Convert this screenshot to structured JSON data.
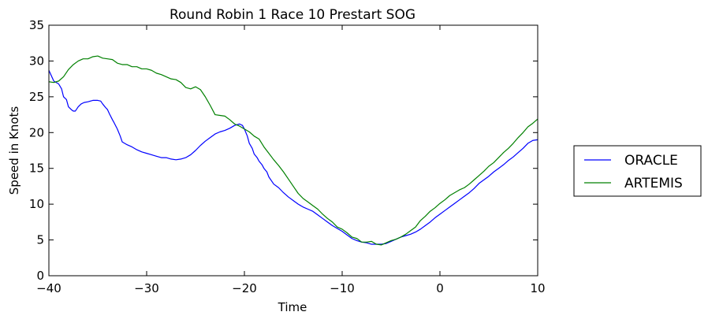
{
  "chart_data": {
    "type": "line",
    "title": "Round Robin 1 Race 10 Prestart SOG",
    "xlabel": "Time",
    "ylabel": "Speed in Knots",
    "xlim": [
      -40,
      10
    ],
    "ylim": [
      0,
      35
    ],
    "xticks": [
      -40,
      -30,
      -20,
      -10,
      0,
      10
    ],
    "xtick_labels": [
      "−40",
      "−30",
      "−20",
      "−10",
      "0",
      "10"
    ],
    "yticks": [
      0,
      5,
      10,
      15,
      20,
      25,
      30,
      35
    ],
    "ytick_labels": [
      "0",
      "5",
      "10",
      "15",
      "20",
      "25",
      "30",
      "35"
    ],
    "grid": false,
    "legend_position": "outside-right",
    "series": [
      {
        "name": "ORACLE",
        "color": "#0000ff",
        "x": [
          -40,
          -39.5,
          -39,
          -38.7,
          -38.5,
          -38.2,
          -38,
          -37.7,
          -37.5,
          -37.3,
          -37,
          -36.7,
          -36.4,
          -36,
          -35.5,
          -35,
          -34.7,
          -34.5,
          -34.2,
          -34,
          -33.8,
          -33.5,
          -33.3,
          -33,
          -32.7,
          -32.5,
          -32,
          -31.5,
          -31,
          -30.5,
          -30,
          -29.5,
          -29,
          -28.5,
          -28,
          -27.5,
          -27,
          -26.5,
          -26,
          -25.5,
          -25,
          -24.5,
          -24,
          -23.5,
          -23,
          -22.5,
          -22,
          -21.5,
          -21,
          -20.5,
          -20.2,
          -20,
          -19.7,
          -19.5,
          -19.2,
          -19,
          -18.7,
          -18.5,
          -18.2,
          -18,
          -17.7,
          -17.5,
          -17.2,
          -17,
          -16.5,
          -16,
          -15.5,
          -15,
          -14.5,
          -14,
          -13.5,
          -13,
          -12.5,
          -12,
          -11.5,
          -11,
          -10.5,
          -10,
          -9.5,
          -9,
          -8.5,
          -8,
          -7.5,
          -7,
          -6.5,
          -6,
          -5.5,
          -5,
          -4.5,
          -4,
          -3.5,
          -3,
          -2.5,
          -2,
          -1.5,
          -1,
          -0.5,
          0,
          0.5,
          1,
          1.5,
          2,
          2.5,
          3,
          3.5,
          4,
          4.5,
          5,
          5.5,
          6,
          6.5,
          7,
          7.5,
          8,
          8.5,
          9,
          9.5,
          10
        ],
        "y": [
          28.7,
          27.2,
          26.8,
          26.1,
          25,
          24.6,
          23.6,
          23.2,
          23,
          23,
          23.6,
          24,
          24.2,
          24.3,
          24.5,
          24.5,
          24.4,
          24,
          23.5,
          23.2,
          22.6,
          21.8,
          21.3,
          20.5,
          19.5,
          18.7,
          18.3,
          18,
          17.6,
          17.3,
          17.1,
          16.9,
          16.7,
          16.5,
          16.5,
          16.3,
          16.2,
          16.3,
          16.5,
          16.9,
          17.5,
          18.2,
          18.8,
          19.3,
          19.8,
          20.1,
          20.3,
          20.6,
          21,
          21.2,
          21,
          20.5,
          19.5,
          18.5,
          17.8,
          17,
          16.5,
          16,
          15.5,
          15,
          14.5,
          13.8,
          13.2,
          12.8,
          12.3,
          11.6,
          11,
          10.5,
          10,
          9.6,
          9.3,
          9,
          8.5,
          8,
          7.5,
          7,
          6.6,
          6.2,
          5.7,
          5.2,
          4.9,
          4.7,
          4.6,
          4.4,
          4.4,
          4.4,
          4.5,
          4.8,
          5.1,
          5.4,
          5.6,
          5.8,
          6.1,
          6.5,
          7,
          7.5,
          8.1,
          8.6,
          9.1,
          9.6,
          10.1,
          10.6,
          11.1,
          11.6,
          12.2,
          12.9,
          13.4,
          13.9,
          14.5,
          15,
          15.5,
          16.1,
          16.6,
          17.2,
          17.8,
          18.5,
          18.9,
          19
        ]
      },
      {
        "name": "ARTEMIS",
        "color": "#008000",
        "x": [
          -40,
          -39.5,
          -39,
          -38.5,
          -38,
          -37.5,
          -37,
          -36.5,
          -36,
          -35.5,
          -35,
          -34.5,
          -34,
          -33.5,
          -33,
          -32.5,
          -32,
          -31.5,
          -31,
          -30.5,
          -30,
          -29.5,
          -29,
          -28.5,
          -28,
          -27.5,
          -27,
          -26.5,
          -26,
          -25.5,
          -25,
          -24.5,
          -24,
          -23.5,
          -23,
          -22.5,
          -22,
          -21.5,
          -21,
          -20.5,
          -20,
          -19.5,
          -19,
          -18.5,
          -18,
          -17.5,
          -17,
          -16.5,
          -16,
          -15.5,
          -15,
          -14.5,
          -14,
          -13.5,
          -13,
          -12.5,
          -12,
          -11.5,
          -11,
          -10.5,
          -10,
          -9.5,
          -9,
          -8.5,
          -8,
          -7.5,
          -7,
          -6.5,
          -6,
          -5.5,
          -5,
          -4.5,
          -4,
          -3.5,
          -3,
          -2.5,
          -2,
          -1.5,
          -1,
          -0.5,
          0,
          0.5,
          1,
          1.5,
          2,
          2.5,
          3,
          3.5,
          4,
          4.5,
          5,
          5.5,
          6,
          6.5,
          7,
          7.5,
          8,
          8.5,
          9,
          9.5,
          10
        ],
        "y": [
          27.1,
          27,
          27.2,
          27.8,
          28.8,
          29.5,
          30,
          30.3,
          30.3,
          30.6,
          30.7,
          30.4,
          30.3,
          30.2,
          29.7,
          29.5,
          29.5,
          29.2,
          29.2,
          28.9,
          28.9,
          28.7,
          28.3,
          28.1,
          27.8,
          27.5,
          27.4,
          27,
          26.3,
          26.1,
          26.4,
          26,
          25,
          23.8,
          22.5,
          22.4,
          22.3,
          21.8,
          21.2,
          20.9,
          20.5,
          20.1,
          19.5,
          19.1,
          18,
          17.1,
          16.2,
          15.4,
          14.5,
          13.5,
          12.5,
          11.5,
          10.8,
          10.3,
          9.8,
          9.3,
          8.6,
          8,
          7.5,
          6.8,
          6.5,
          6,
          5.4,
          5.2,
          4.7,
          4.7,
          4.8,
          4.4,
          4.3,
          4.6,
          4.9,
          5.1,
          5.4,
          5.8,
          6.3,
          6.8,
          7.7,
          8.3,
          9,
          9.5,
          10.1,
          10.6,
          11.2,
          11.6,
          12,
          12.3,
          12.8,
          13.4,
          14,
          14.6,
          15.3,
          15.8,
          16.5,
          17.2,
          17.8,
          18.5,
          19.3,
          20,
          20.8,
          21.3,
          21.9
        ]
      }
    ]
  }
}
